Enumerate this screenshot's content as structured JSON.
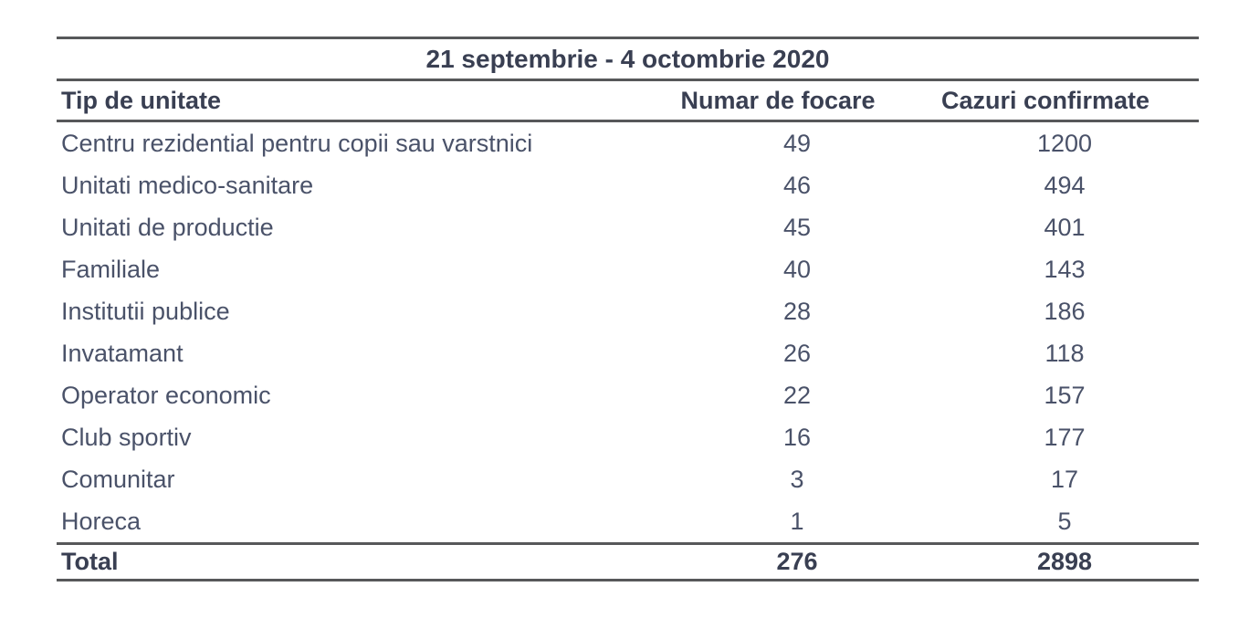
{
  "table": {
    "title": "21 septembrie - 4 octombrie 2020",
    "columns": {
      "unit_type": "Tip de unitate",
      "outbreaks": "Numar de focare",
      "confirmed": "Cazuri confirmate"
    },
    "rows": [
      {
        "label": "Centru rezidential pentru copii sau varstnici",
        "focare": "49",
        "cazuri": "1200"
      },
      {
        "label": "Unitati medico-sanitare",
        "focare": "46",
        "cazuri": "494"
      },
      {
        "label": "Unitati de productie",
        "focare": "45",
        "cazuri": "401"
      },
      {
        "label": "Familiale",
        "focare": "40",
        "cazuri": "143"
      },
      {
        "label": "Institutii publice",
        "focare": "28",
        "cazuri": "186"
      },
      {
        "label": "Invatamant",
        "focare": "26",
        "cazuri": "118"
      },
      {
        "label": "Operator economic",
        "focare": "22",
        "cazuri": "157"
      },
      {
        "label": "Club sportiv",
        "focare": "16",
        "cazuri": "177"
      },
      {
        "label": "Comunitar",
        "focare": "3",
        "cazuri": "17"
      },
      {
        "label": "Horeca",
        "focare": "1",
        "cazuri": "5"
      }
    ],
    "total": {
      "label": "Total",
      "focare": "276",
      "cazuri": "2898"
    }
  },
  "colors": {
    "body_text": "#4a5269",
    "bold_text": "#393f52",
    "rule": "#57585a",
    "background": "#ffffff"
  },
  "chart_data": {
    "type": "table",
    "title": "21 septembrie - 4 octombrie 2020",
    "categories": [
      "Centru rezidential pentru copii sau varstnici",
      "Unitati medico-sanitare",
      "Unitati de productie",
      "Familiale",
      "Institutii publice",
      "Invatamant",
      "Operator economic",
      "Club sportiv",
      "Comunitar",
      "Horeca"
    ],
    "series": [
      {
        "name": "Numar de focare",
        "values": [
          49,
          46,
          45,
          40,
          28,
          26,
          22,
          16,
          3,
          1
        ],
        "total": 276
      },
      {
        "name": "Cazuri confirmate",
        "values": [
          1200,
          494,
          401,
          143,
          186,
          118,
          157,
          177,
          17,
          5
        ],
        "total": 2898
      }
    ]
  }
}
